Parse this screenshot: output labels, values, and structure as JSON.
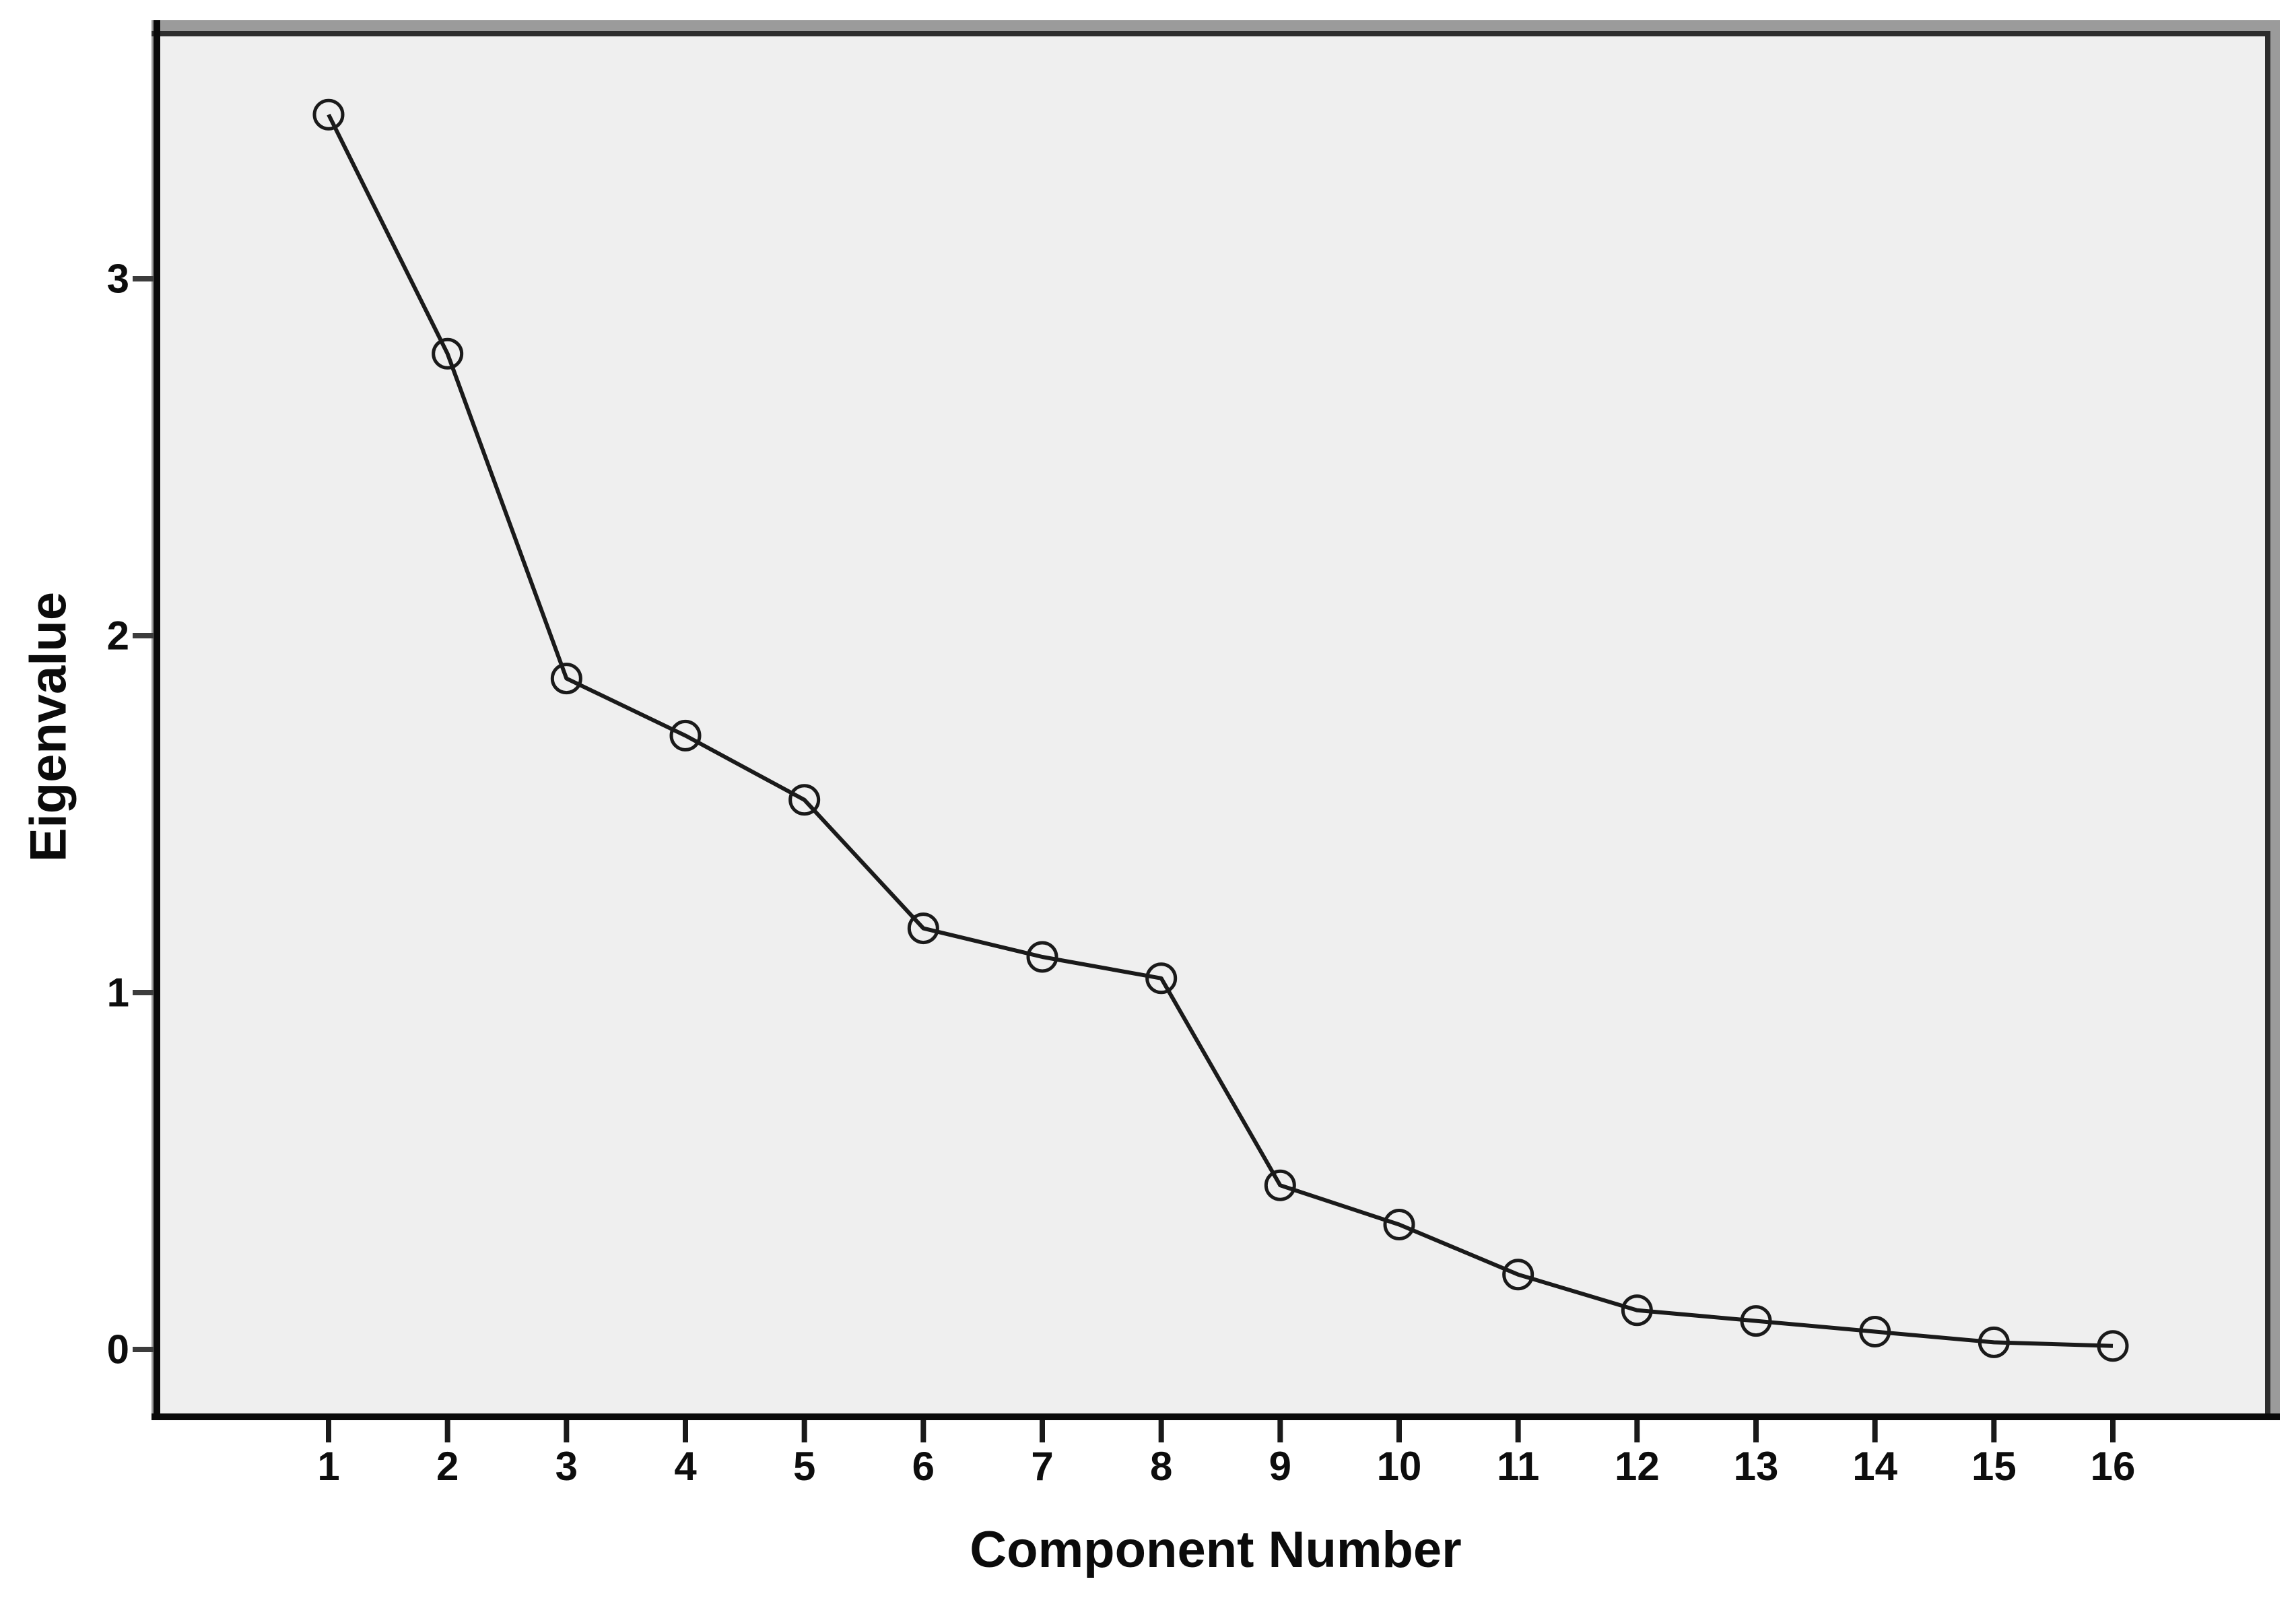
{
  "chart_data": {
    "type": "line",
    "title": "",
    "xlabel": "Component Number",
    "ylabel": "Eigenvalue",
    "x": [
      1,
      2,
      3,
      4,
      5,
      6,
      7,
      8,
      9,
      10,
      11,
      12,
      13,
      14,
      15,
      16
    ],
    "x_tick_labels": [
      "1",
      "2",
      "3",
      "4",
      "5",
      "6",
      "7",
      "8",
      "9",
      "10",
      "11",
      "12",
      "13",
      "14",
      "15",
      "16"
    ],
    "values": [
      3.46,
      2.79,
      1.88,
      1.72,
      1.54,
      1.18,
      1.1,
      1.04,
      0.46,
      0.35,
      0.21,
      0.11,
      0.08,
      0.05,
      0.02,
      0.01
    ],
    "y_ticks": [
      0,
      1,
      2,
      3
    ],
    "y_tick_labels": [
      "0",
      "1",
      "2",
      "3"
    ],
    "ylim": [
      -0.19,
      3.69
    ],
    "xlim_categories": "components 1 through 16 evenly spaced",
    "grid": false,
    "legend": null,
    "marker": "open-circle",
    "line_color": "#1a1a1a",
    "marker_stroke_color": "#1a1a1a",
    "plot_bg_color": "#efefef",
    "outer_bg_color": "#ffffff",
    "frame_dark_color": "#2d2d2d",
    "axis_line_color": "#0a0a0a",
    "bevel_gray_color": "#9b9b9b"
  }
}
